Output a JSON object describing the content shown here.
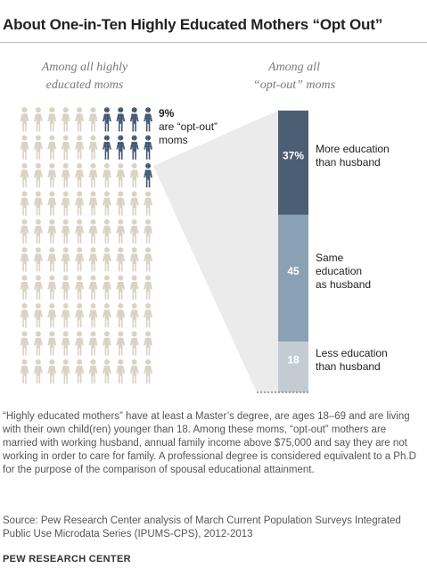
{
  "title": "About One-in-Ten Highly Educated Mothers “Opt Out”",
  "left_panel": {
    "heading_line1": "Among all highly",
    "heading_line2": "educated moms",
    "callout_value": "9%",
    "callout_line2": "are “opt-out”",
    "callout_line3": "moms"
  },
  "right_panel": {
    "heading_line1": "Among all",
    "heading_line2": "“opt-out” moms"
  },
  "chart_data": [
    {
      "type": "pictograph",
      "total_icons": 100,
      "highlighted_icons": 9,
      "highlighted_label": "9%",
      "colors": {
        "highlight": "#40566e",
        "base": "#d9d3c3"
      }
    },
    {
      "type": "bar",
      "stacked": true,
      "segments": [
        {
          "value": 37,
          "value_label": "37%",
          "label_line1": "More education",
          "label_line2": "than husband",
          "label_line3": "",
          "color": "#4b5e73"
        },
        {
          "value": 45,
          "value_label": "45",
          "label_line1": "Same",
          "label_line2": "education",
          "label_line3": "as husband",
          "color": "#8aa1b3"
        },
        {
          "value": 18,
          "value_label": "18",
          "label_line1": "Less education",
          "label_line2": "than husband",
          "label_line3": "",
          "color": "#c4ccd3"
        }
      ]
    }
  ],
  "note": "“Highly educated mothers” have at least a Master’s degree, are ages 18–69 and are living with their own child(ren) younger than 18. Among these moms, “opt-out” mothers are married with working husband, annual family income above $75,000 and say they are not working in order to care for family. A professional degree is considered equivalent to a Ph.D for the purpose of the comparison of spousal educational attainment.",
  "source": "Source: Pew Research Center analysis of March Current Population Surveys Integrated Public Use Microdata Series (IPUMS-CPS), 2012-2013",
  "credit": "PEW RESEARCH CENTER"
}
